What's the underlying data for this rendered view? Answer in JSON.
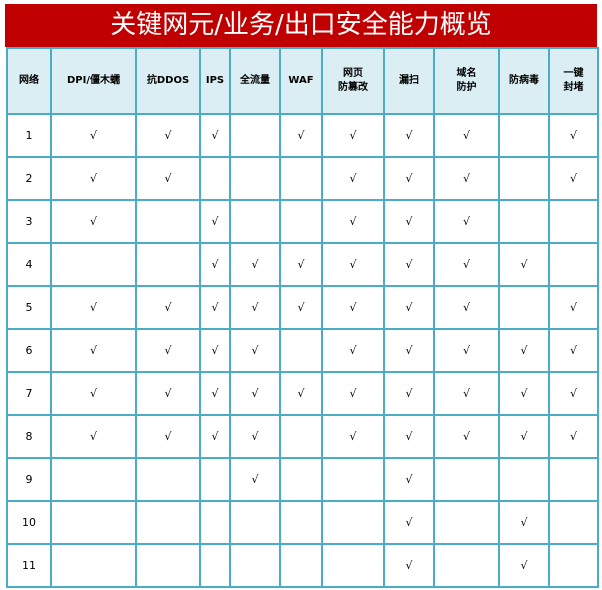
{
  "title": "关键网元/业务/出口安全能力概览",
  "check_mark": "√",
  "colors": {
    "title_bg": "#c00000",
    "header_bg": "#daeef3",
    "border": "#4bacc6"
  },
  "headers": [
    "网络",
    "DPI/僵木蠕",
    "抗DDOS",
    "IPS",
    "全流量",
    "WAF",
    "网页\n防篡改",
    "漏扫",
    "域名\n防护",
    "防病毒",
    "一键\n封堵"
  ],
  "rows": [
    [
      "1",
      "√",
      "√",
      "√",
      "",
      "√",
      "√",
      "√",
      "√",
      "",
      "√"
    ],
    [
      "2",
      "√",
      "√",
      "",
      "",
      "",
      "√",
      "√",
      "√",
      "",
      "√"
    ],
    [
      "3",
      "√",
      "",
      "√",
      "",
      "",
      "√",
      "√",
      "√",
      "",
      ""
    ],
    [
      "4",
      "",
      "",
      "√",
      "√",
      "√",
      "√",
      "√",
      "√",
      "√",
      ""
    ],
    [
      "5",
      "√",
      "√",
      "√",
      "√",
      "√",
      "√",
      "√",
      "√",
      "",
      "√"
    ],
    [
      "6",
      "√",
      "√",
      "√",
      "√",
      "",
      "√",
      "√",
      "√",
      "√",
      "√"
    ],
    [
      "7",
      "√",
      "√",
      "√",
      "√",
      "√",
      "√",
      "√",
      "√",
      "√",
      "√"
    ],
    [
      "8",
      "√",
      "√",
      "√",
      "√",
      "",
      "√",
      "√",
      "√",
      "√",
      "√"
    ],
    [
      "9",
      "",
      "",
      "",
      "√",
      "",
      "",
      "√",
      "",
      "",
      ""
    ],
    [
      "10",
      "",
      "",
      "",
      "",
      "",
      "",
      "√",
      "",
      "√",
      ""
    ],
    [
      "11",
      "",
      "",
      "",
      "",
      "",
      "",
      "√",
      "",
      "√",
      ""
    ]
  ]
}
